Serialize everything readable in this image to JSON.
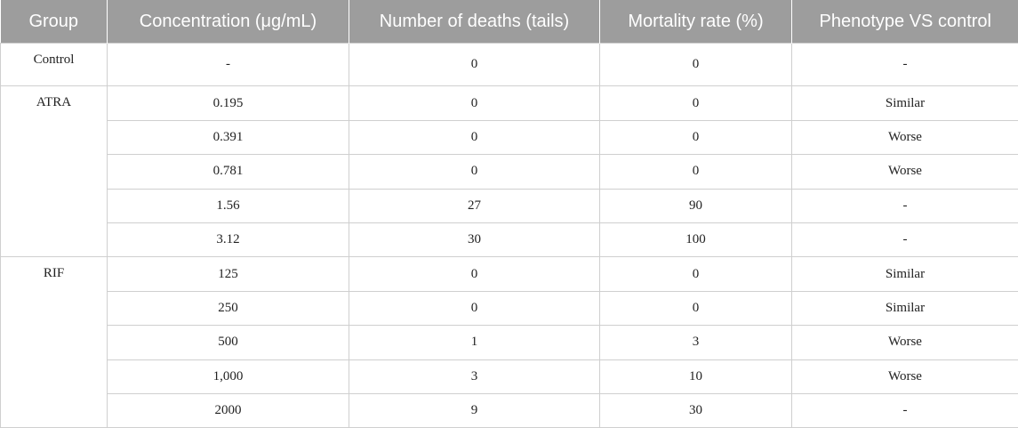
{
  "table": {
    "headers": [
      "Group",
      "Concentration (μg/mL)",
      "Number of deaths (tails)",
      "Mortality rate (%)",
      "Phenotype VS control"
    ],
    "groups": [
      {
        "name": "Control",
        "rows": [
          {
            "concentration": "-",
            "deaths": "0",
            "mortality": "0",
            "phenotype": "-"
          }
        ]
      },
      {
        "name": "ATRA",
        "rows": [
          {
            "concentration": "0.195",
            "deaths": "0",
            "mortality": "0",
            "phenotype": "Similar"
          },
          {
            "concentration": "0.391",
            "deaths": "0",
            "mortality": "0",
            "phenotype": "Worse"
          },
          {
            "concentration": "0.781",
            "deaths": "0",
            "mortality": "0",
            "phenotype": "Worse"
          },
          {
            "concentration": "1.56",
            "deaths": "27",
            "mortality": "90",
            "phenotype": "-"
          },
          {
            "concentration": "3.12",
            "deaths": "30",
            "mortality": "100",
            "phenotype": "-"
          }
        ]
      },
      {
        "name": "RIF",
        "rows": [
          {
            "concentration": "125",
            "deaths": "0",
            "mortality": "0",
            "phenotype": "Similar"
          },
          {
            "concentration": "250",
            "deaths": "0",
            "mortality": "0",
            "phenotype": "Similar"
          },
          {
            "concentration": "500",
            "deaths": "1",
            "mortality": "3",
            "phenotype": "Worse"
          },
          {
            "concentration": "1,000",
            "deaths": "3",
            "mortality": "10",
            "phenotype": "Worse"
          },
          {
            "concentration": "2000",
            "deaths": "9",
            "mortality": "30",
            "phenotype": "-"
          }
        ]
      }
    ]
  }
}
